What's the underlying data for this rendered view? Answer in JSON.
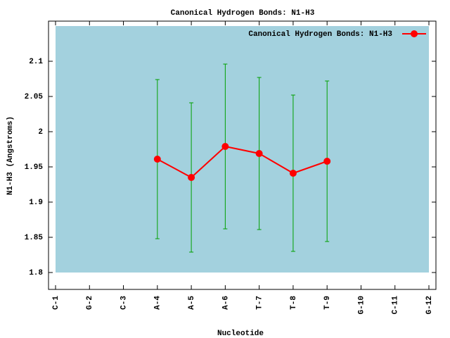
{
  "chart_data": {
    "type": "line-errorbar",
    "title": "Canonical Hydrogen Bonds: N1-H3",
    "x_label": "Nucleotide",
    "y_label": "N1-H3 (Angstroms)",
    "categories": [
      "C-1",
      "G-2",
      "C-3",
      "A-4",
      "A-5",
      "A-6",
      "T-7",
      "T-8",
      "T-9",
      "G-10",
      "C-11",
      "G-12"
    ],
    "series": [
      {
        "name": "Canonical Hydrogen Bonds: N1-H3",
        "color": "#ff0000",
        "error_color": "#00a000",
        "values": [
          null,
          null,
          null,
          1.961,
          1.935,
          1.979,
          1.969,
          1.941,
          1.958,
          null,
          null,
          null
        ],
        "errors": [
          null,
          null,
          null,
          0.113,
          0.106,
          0.117,
          0.108,
          0.111,
          0.114,
          null,
          null,
          null
        ]
      }
    ],
    "ylim": [
      1.776,
      2.157
    ],
    "yticks": [
      1.8,
      1.85,
      1.9,
      1.95,
      2,
      2.05,
      2.1
    ],
    "legend": "top-right",
    "grid": false
  }
}
